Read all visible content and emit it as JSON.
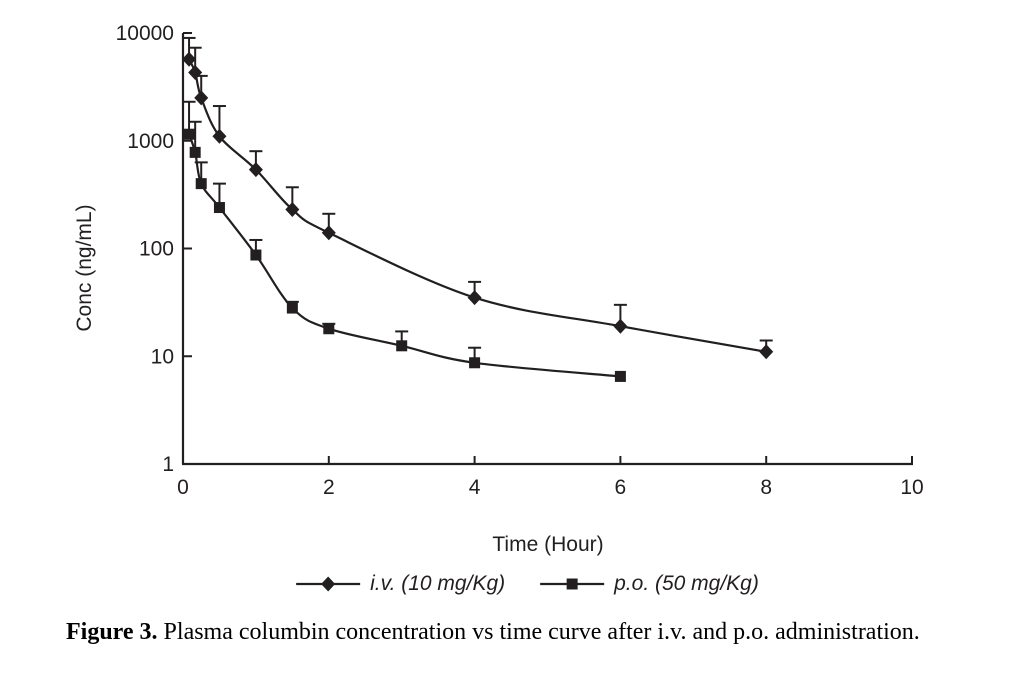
{
  "colors": {
    "ink": "#231f20",
    "background": "#ffffff"
  },
  "chart_data": {
    "type": "line",
    "title": "",
    "xlabel": "Time (Hour)",
    "ylabel": "Conc (ng/mL)",
    "y_scale": "log",
    "xlim": [
      0,
      10
    ],
    "ylim": [
      1,
      10000
    ],
    "x_ticks": [
      0,
      2,
      4,
      6,
      8,
      10
    ],
    "y_ticks": [
      1,
      10,
      100,
      1000,
      10000
    ],
    "grid": false,
    "legend_position": "bottom",
    "error_bars": "upper only",
    "series": [
      {
        "name": "i.v. (10 mg/Kg)",
        "marker": "diamond",
        "points": [
          {
            "x": 0.083,
            "y": 5700,
            "err_top": 9000
          },
          {
            "x": 0.167,
            "y": 4300,
            "err_top": 7300
          },
          {
            "x": 0.25,
            "y": 2500,
            "err_top": 4000
          },
          {
            "x": 0.5,
            "y": 1100,
            "err_top": 2100
          },
          {
            "x": 1,
            "y": 540,
            "err_top": 800
          },
          {
            "x": 1.5,
            "y": 230,
            "err_top": 370
          },
          {
            "x": 2,
            "y": 140,
            "err_top": 210
          },
          {
            "x": 4,
            "y": 35,
            "err_top": 49
          },
          {
            "x": 6,
            "y": 19,
            "err_top": 30
          },
          {
            "x": 8,
            "y": 11,
            "err_top": 14
          }
        ]
      },
      {
        "name": "p.o. (50 mg/Kg)",
        "marker": "square",
        "points": [
          {
            "x": 0.083,
            "y": 1150,
            "err_top": 2300
          },
          {
            "x": 0.167,
            "y": 780,
            "err_top": 1500
          },
          {
            "x": 0.25,
            "y": 400,
            "err_top": 630
          },
          {
            "x": 0.5,
            "y": 240,
            "err_top": 400
          },
          {
            "x": 1,
            "y": 87,
            "err_top": 120
          },
          {
            "x": 1.5,
            "y": 28,
            "err_top": 32
          },
          {
            "x": 2,
            "y": 18,
            "err_top": 20
          },
          {
            "x": 3,
            "y": 12.5,
            "err_top": 17
          },
          {
            "x": 4,
            "y": 8.7,
            "err_top": 12
          },
          {
            "x": 6,
            "y": 6.5,
            "err_top": null
          }
        ]
      }
    ]
  },
  "caption": {
    "label": "Figure 3.",
    "text": " Plasma columbin concentration vs time curve after i.v. and p.o. administration."
  }
}
